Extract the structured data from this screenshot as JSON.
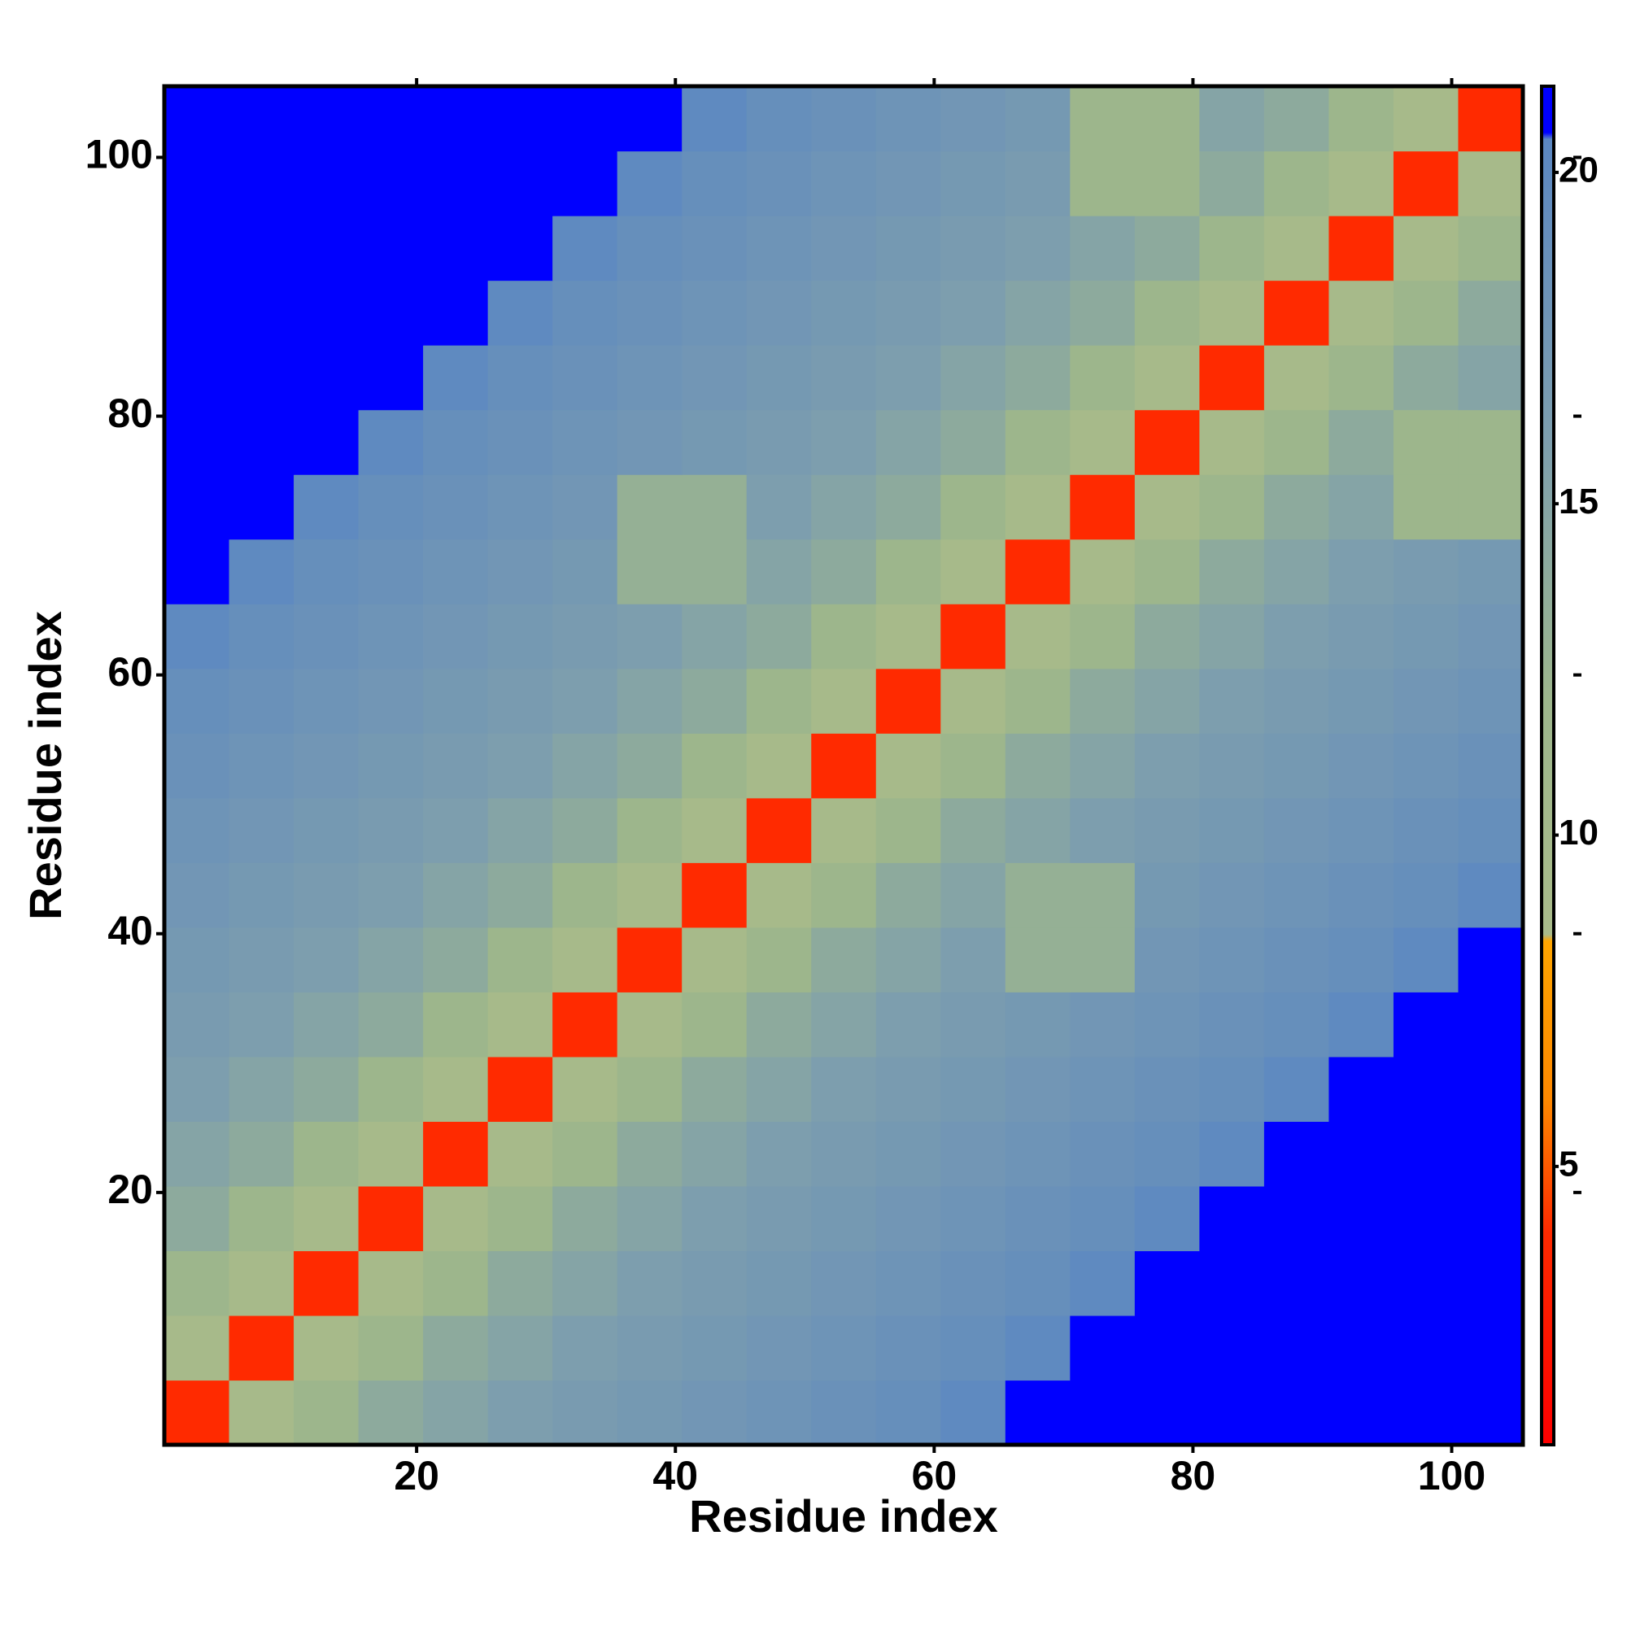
{
  "chart_data": {
    "type": "heatmap",
    "xlabel": "Residue index",
    "ylabel": "Residue index",
    "x": [
      3,
      8,
      13,
      18,
      23,
      28,
      33,
      38,
      43,
      48,
      53,
      58,
      63,
      68,
      73,
      78,
      83,
      88,
      93,
      98,
      103
    ],
    "y": [
      3,
      8,
      13,
      18,
      23,
      28,
      33,
      38,
      43,
      48,
      53,
      58,
      63,
      68,
      73,
      78,
      83,
      88,
      93,
      98,
      103
    ],
    "cell_size": 5,
    "z": [
      [
        4,
        9,
        12,
        14,
        15,
        16,
        16.5,
        17,
        17.5,
        18,
        18.5,
        19,
        20,
        21,
        21,
        21,
        21,
        21,
        21,
        21,
        21
      ],
      [
        9,
        4,
        9,
        12,
        14,
        15,
        16,
        16.5,
        17,
        17.5,
        18,
        18.5,
        19,
        20,
        21,
        21,
        21,
        21,
        21,
        21,
        21
      ],
      [
        12,
        9,
        4,
        9,
        12,
        14,
        15,
        16,
        16.5,
        17,
        17.5,
        18,
        18.5,
        19,
        20,
        21,
        21,
        21,
        21,
        21,
        21
      ],
      [
        14,
        12,
        9,
        4,
        9,
        12,
        14,
        15,
        16,
        16.5,
        17,
        17.5,
        18,
        18.5,
        19,
        20,
        21,
        21,
        21,
        21,
        21
      ],
      [
        15,
        14,
        12,
        9,
        4,
        9,
        12,
        14,
        15,
        16,
        16.5,
        17,
        17.5,
        18,
        18.5,
        19,
        20,
        21,
        21,
        21,
        21
      ],
      [
        16,
        15,
        14,
        12,
        9,
        4,
        9,
        12,
        14,
        15,
        16,
        16.5,
        17,
        17.5,
        18,
        18.5,
        19,
        20,
        21,
        21,
        21
      ],
      [
        16.5,
        16,
        15,
        14,
        12,
        9,
        4,
        9,
        12,
        14,
        15,
        16,
        16.5,
        17,
        17.5,
        18,
        18.5,
        19,
        20,
        21,
        21
      ],
      [
        17,
        16.5,
        16,
        15,
        14,
        12,
        9,
        4,
        9,
        12,
        14,
        15,
        16,
        13,
        13,
        17.5,
        18,
        18.5,
        19,
        20,
        21
      ],
      [
        17.5,
        17,
        16.5,
        16,
        15,
        14,
        12,
        9,
        4,
        9,
        12,
        14,
        15,
        13,
        13,
        17,
        17.5,
        18,
        18.5,
        19,
        20
      ],
      [
        18,
        17.5,
        17,
        16.5,
        16,
        15,
        14,
        12,
        9,
        4,
        9,
        12,
        14,
        15,
        16,
        16.5,
        17,
        17.5,
        18,
        18.5,
        19
      ],
      [
        18.5,
        18,
        17.5,
        17,
        16.5,
        16,
        15,
        14,
        12,
        9,
        4,
        9,
        12,
        14,
        15,
        16,
        16.5,
        17,
        17.5,
        18,
        18.5
      ],
      [
        19,
        18.5,
        18,
        17.5,
        17,
        16.5,
        16,
        15,
        14,
        12,
        9,
        4,
        9,
        12,
        14,
        15,
        16,
        16.5,
        17,
        17.5,
        18
      ],
      [
        20,
        19,
        18.5,
        18,
        17.5,
        17,
        16.5,
        16,
        15,
        14,
        12,
        9,
        4,
        9,
        12,
        14,
        15,
        16,
        16.5,
        17,
        17.5
      ],
      [
        21,
        20,
        19,
        18.5,
        18,
        17.5,
        17,
        13,
        13,
        15,
        14,
        12,
        9,
        4,
        9,
        12,
        14,
        15,
        16,
        16.5,
        17
      ],
      [
        21,
        21,
        20,
        19,
        18.5,
        18,
        17.5,
        13,
        13,
        16,
        15,
        14,
        12,
        9,
        4,
        9,
        12,
        14,
        15,
        12,
        12
      ],
      [
        21,
        21,
        21,
        20,
        19,
        18.5,
        18,
        17.5,
        17,
        16.5,
        16,
        15,
        14,
        12,
        9,
        4,
        9,
        12,
        14,
        12,
        12
      ],
      [
        21,
        21,
        21,
        21,
        20,
        19,
        18.5,
        18,
        17.5,
        17,
        16.5,
        16,
        15,
        14,
        12,
        9,
        4,
        9,
        12,
        14,
        15
      ],
      [
        21,
        21,
        21,
        21,
        21,
        20,
        19,
        18.5,
        18,
        17.5,
        17,
        16.5,
        16,
        15,
        14,
        12,
        9,
        4,
        9,
        12,
        14
      ],
      [
        21,
        21,
        21,
        21,
        21,
        21,
        20,
        19,
        18.5,
        18,
        17.5,
        17,
        16.5,
        16,
        15,
        14,
        12,
        9,
        4,
        9,
        12
      ],
      [
        21,
        21,
        21,
        21,
        21,
        21,
        21,
        20,
        19,
        18.5,
        18,
        17.5,
        17,
        16.5,
        12,
        12,
        14,
        12,
        9,
        4,
        9
      ],
      [
        21,
        21,
        21,
        21,
        21,
        21,
        21,
        21,
        20,
        19,
        18.5,
        18,
        17.5,
        17,
        12,
        12,
        15,
        14,
        12,
        9,
        4
      ]
    ],
    "xlim": [
      0.5,
      105.5
    ],
    "ylim": [
      0.5,
      105.5
    ],
    "xticks": [
      20,
      40,
      60,
      80,
      100
    ],
    "yticks": [
      20,
      40,
      60,
      80,
      100
    ],
    "clim": [
      0.8,
      21.3
    ],
    "cticks": [
      5,
      10,
      15,
      20
    ],
    "colorscale": [
      [
        0.8,
        "#ff0000"
      ],
      [
        4,
        "#ff2a00"
      ],
      [
        6,
        "#ff8800"
      ],
      [
        8.4,
        "#ffa500"
      ],
      [
        8.5,
        "#a9bb8a"
      ],
      [
        12,
        "#9db68c"
      ],
      [
        16,
        "#7d9eae"
      ],
      [
        20.5,
        "#5b87c2"
      ],
      [
        20.6,
        "#0000ff"
      ],
      [
        21.3,
        "#0000ff"
      ]
    ]
  }
}
